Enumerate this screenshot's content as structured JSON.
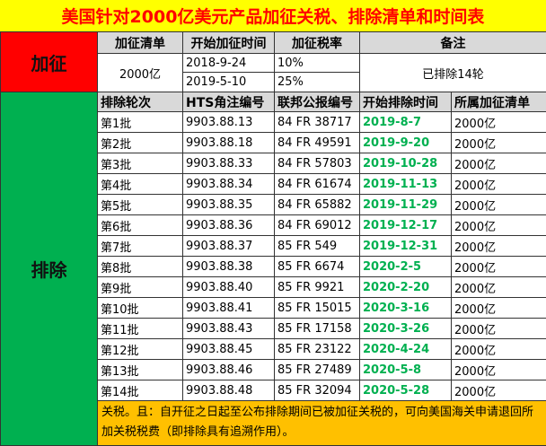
{
  "title": "美国针对2000亿美元产品加征关税、排除清单和时间表",
  "levy": {
    "section_label": "加征",
    "headers": [
      "加征清单",
      "开始加征时间",
      "加征税率",
      "备注"
    ],
    "list": "2000亿",
    "rows": [
      {
        "date": "2018-9-24",
        "rate": "10%"
      },
      {
        "date": "2019-5-10",
        "rate": "25%"
      }
    ],
    "remark": "已排除14轮"
  },
  "exclusion": {
    "section_label": "排除",
    "headers": [
      "排除轮次",
      "HTS角注编号",
      "联邦公报编号",
      "开始排除时间",
      "所属加征清单"
    ],
    "rows": [
      [
        "第1批",
        "9903.88.13",
        "84 FR 38717",
        "2019-8-7",
        "2000亿"
      ],
      [
        "第2批",
        "9903.88.18",
        "84 FR 49591",
        "2019-9-20",
        "2000亿"
      ],
      [
        "第3批",
        "9903.88.33",
        "84 FR 57803",
        "2019-10-28",
        "2000亿"
      ],
      [
        "第4批",
        "9903.88.34",
        "84 FR 61674",
        "2019-11-13",
        "2000亿"
      ],
      [
        "第5批",
        "9903.88.35",
        "84 FR 65882",
        "2019-11-29",
        "2000亿"
      ],
      [
        "第6批",
        "9903.88.36",
        "84 FR 69012",
        "2019-12-17",
        "2000亿"
      ],
      [
        "第7批",
        "9903.88.37",
        "85 FR 549",
        "2019-12-31",
        "2000亿"
      ],
      [
        "第8批",
        "9903.88.38",
        "85 FR 6674",
        "2020-2-5",
        "2000亿"
      ],
      [
        "第9批",
        "9903.88.40",
        "85 FR 9921",
        "2020-2-20",
        "2000亿"
      ],
      [
        "第10批",
        "9903.88.41",
        "85 FR 15015",
        "2020-3-16",
        "2000亿"
      ],
      [
        "第11批",
        "9903.88.43",
        "85 FR 17158",
        "2020-3-26",
        "2000亿"
      ],
      [
        "第12批",
        "9903.88.45",
        "85 FR 23122",
        "2020-4-24",
        "2000亿"
      ],
      [
        "第13批",
        "9903.88.46",
        "85 FR 27489",
        "2020-5-8",
        "2000亿"
      ],
      [
        "第14批",
        "9903.88.48",
        "85 FR 32094",
        "2020-5-28",
        "2000亿"
      ]
    ],
    "note": "关税。且：自开征之日起至公布排除期间已被加征关税的，可向美国海关申请退回所加关税税费（即排除具有追溯作用）。"
  }
}
